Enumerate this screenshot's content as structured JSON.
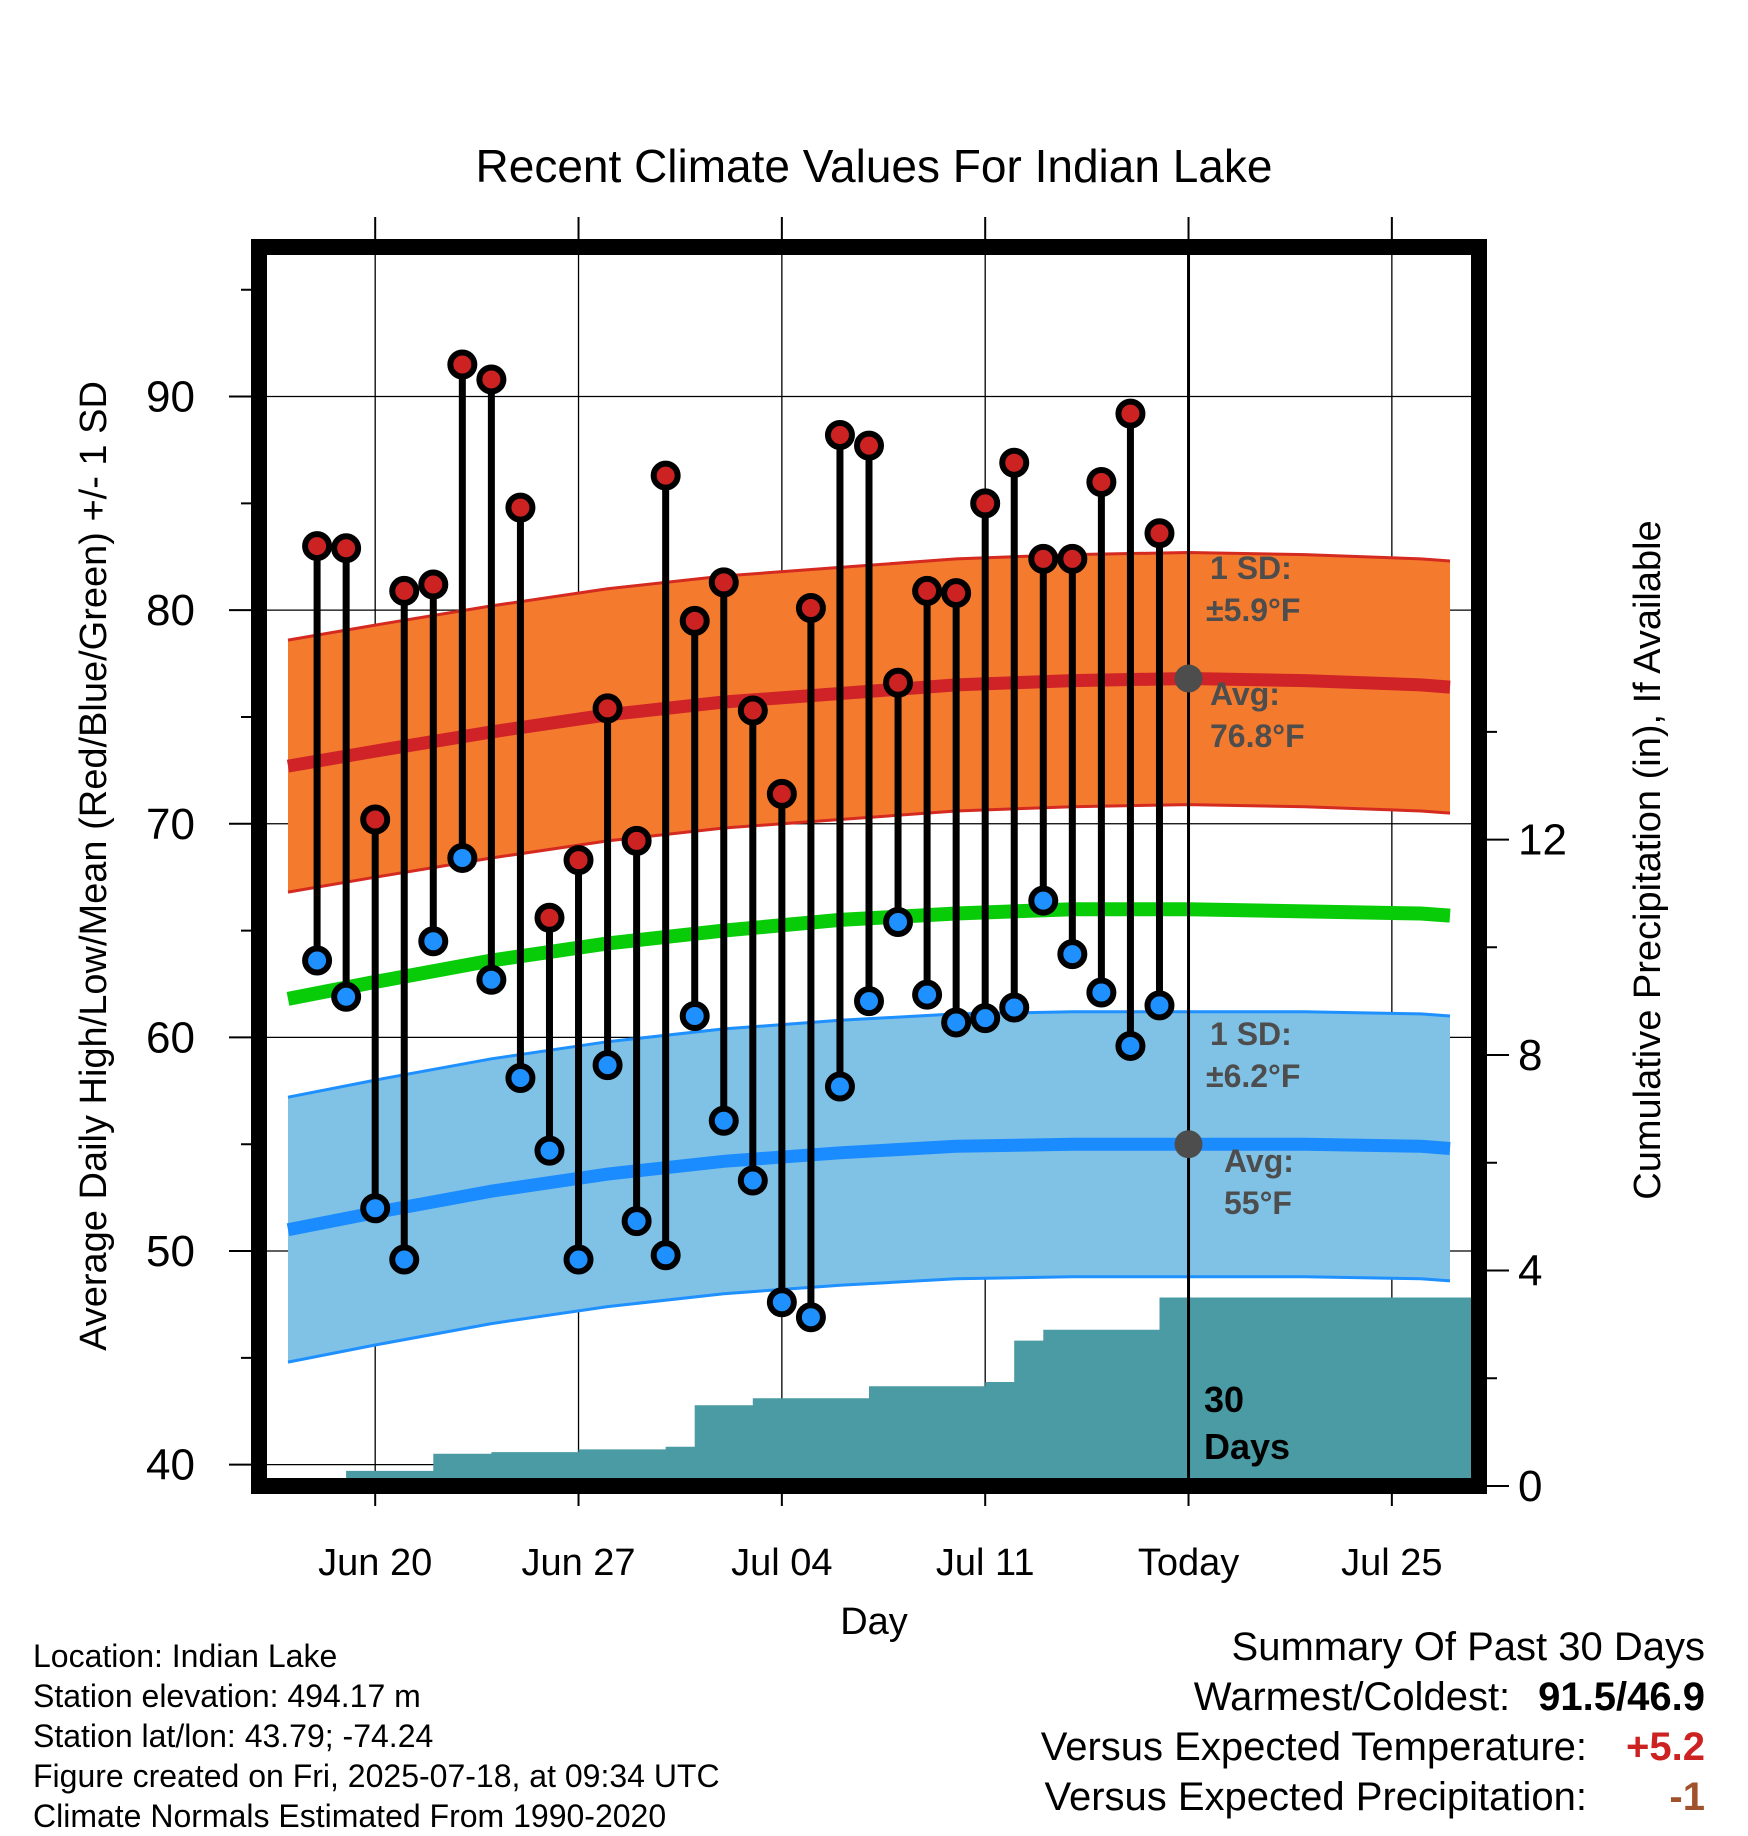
{
  "colors": {
    "high_band": "#f47a2d",
    "high_band_edge": "#d42a20",
    "high_avg": "#cf2327",
    "low_band": "#80c1e6",
    "low_band_edge": "#1e90ff",
    "low_avg": "#1a8cff",
    "mean": "#08cc08",
    "precip": "#4a9ba4",
    "high_dot": "#cc2222",
    "low_dot": "#1e90ff",
    "annotation": "#4d4d4d",
    "summary_warm": "#cc2222",
    "summary_precip": "#a0522d"
  },
  "chart_data": {
    "type": "line",
    "title": "Recent Climate Values For Indian Lake",
    "xlabel": "Day",
    "ylabel": "Average Daily High/Low/Mean (Red/Blue/Green) +/- 1 SD",
    "y2label": "Cumulative Precipitation (in), If Available",
    "x_ticks": [
      "Jun 20",
      "Jun 27",
      "Jul 04",
      "Jul 11",
      "Today",
      "Jul 25"
    ],
    "y_ticks": [
      40,
      50,
      60,
      70,
      80,
      90
    ],
    "y2_ticks": [
      0,
      4,
      8,
      12
    ],
    "ylim": [
      39,
      97
    ],
    "y2lim": [
      0,
      23
    ],
    "xlim": [
      "2025-06-16",
      "2025-07-28"
    ],
    "grid": true,
    "dates": [
      "2025-06-18",
      "2025-06-19",
      "2025-06-20",
      "2025-06-21",
      "2025-06-22",
      "2025-06-23",
      "2025-06-24",
      "2025-06-25",
      "2025-06-26",
      "2025-06-27",
      "2025-06-28",
      "2025-06-29",
      "2025-06-30",
      "2025-07-01",
      "2025-07-02",
      "2025-07-03",
      "2025-07-04",
      "2025-07-05",
      "2025-07-06",
      "2025-07-07",
      "2025-07-08",
      "2025-07-09",
      "2025-07-10",
      "2025-07-11",
      "2025-07-12",
      "2025-07-13",
      "2025-07-14",
      "2025-07-15",
      "2025-07-16",
      "2025-07-17"
    ],
    "series": [
      {
        "name": "High",
        "values": [
          83.0,
          82.9,
          70.2,
          80.9,
          81.2,
          91.5,
          90.8,
          84.8,
          65.6,
          68.3,
          75.4,
          69.2,
          86.3,
          79.5,
          81.3,
          75.3,
          71.4,
          80.1,
          88.2,
          87.7,
          76.6,
          80.9,
          80.8,
          85.0,
          86.9,
          82.4,
          82.4,
          86.0,
          89.2,
          83.6
        ]
      },
      {
        "name": "Low",
        "values": [
          63.6,
          61.9,
          52.0,
          49.6,
          64.5,
          68.4,
          62.7,
          58.1,
          54.7,
          49.6,
          58.7,
          51.4,
          49.8,
          61.0,
          56.1,
          53.3,
          47.6,
          46.9,
          57.7,
          61.7,
          65.4,
          62.0,
          60.7,
          60.9,
          61.4,
          66.4,
          63.9,
          62.1,
          59.6,
          61.5
        ]
      }
    ],
    "normal_curves_dates": [
      "2025-06-17",
      "2025-06-20",
      "2025-06-24",
      "2025-06-28",
      "2025-07-02",
      "2025-07-06",
      "2025-07-10",
      "2025-07-14",
      "2025-07-18",
      "2025-07-22",
      "2025-07-26",
      "2025-07-27"
    ],
    "normal_high": [
      72.7,
      73.4,
      74.3,
      75.1,
      75.7,
      76.1,
      76.5,
      76.7,
      76.8,
      76.7,
      76.5,
      76.4
    ],
    "normal_high_sd": 5.9,
    "normal_mean": [
      61.8,
      62.6,
      63.6,
      64.4,
      65.0,
      65.5,
      65.8,
      66.0,
      66.0,
      65.9,
      65.8,
      65.7
    ],
    "normal_low": [
      51.0,
      51.8,
      52.8,
      53.6,
      54.2,
      54.6,
      54.9,
      55.0,
      55.0,
      55.0,
      54.9,
      54.8
    ],
    "normal_low_sd": 6.2,
    "precip_dates": [
      "2025-06-17",
      "2025-06-18",
      "2025-06-19",
      "2025-06-21",
      "2025-06-22",
      "2025-06-24",
      "2025-06-27",
      "2025-06-30",
      "2025-07-01",
      "2025-07-03",
      "2025-07-06",
      "2025-07-07",
      "2025-07-11",
      "2025-07-12",
      "2025-07-13",
      "2025-07-16",
      "2025-07-17",
      "2025-07-28"
    ],
    "precip_cumulative": [
      0.0,
      0.05,
      0.28,
      0.28,
      0.6,
      0.63,
      0.68,
      0.73,
      1.5,
      1.63,
      1.63,
      1.85,
      1.93,
      2.7,
      2.9,
      2.9,
      3.5,
      3.5
    ],
    "avg_markers": [
      {
        "date": "2025-07-18",
        "value": 76.8
      },
      {
        "date": "2025-07-18",
        "value": 55.0
      }
    ],
    "annotations": {
      "high_sd_label": "1 SD:",
      "high_sd_value": "±5.9°F",
      "high_avg_label": "Avg:",
      "high_avg_value": "76.8°F",
      "low_sd_label": "1 SD:",
      "low_sd_value": "±6.2°F",
      "low_avg_label": "Avg:",
      "low_avg_value": "55°F",
      "days_label_1": "30",
      "days_label_2": "Days"
    }
  },
  "footer": {
    "location": "Location: Indian Lake",
    "elevation": "Station elevation: 494.17 m",
    "latlon": "Station lat/lon: 43.79; -74.24",
    "created": "Figure created on Fri, 2025-07-18, at 09:34 UTC",
    "normals": "Climate Normals Estimated From 1990-2020"
  },
  "summary": {
    "title": "Summary Of Past 30 Days",
    "warmest_label": "Warmest/Coldest:",
    "warmest_value": "91.5/46.9",
    "temp_label": "Versus Expected Temperature:",
    "temp_value": "+5.2",
    "precip_label": "Versus Expected Precipitation:",
    "precip_value": "-1"
  }
}
